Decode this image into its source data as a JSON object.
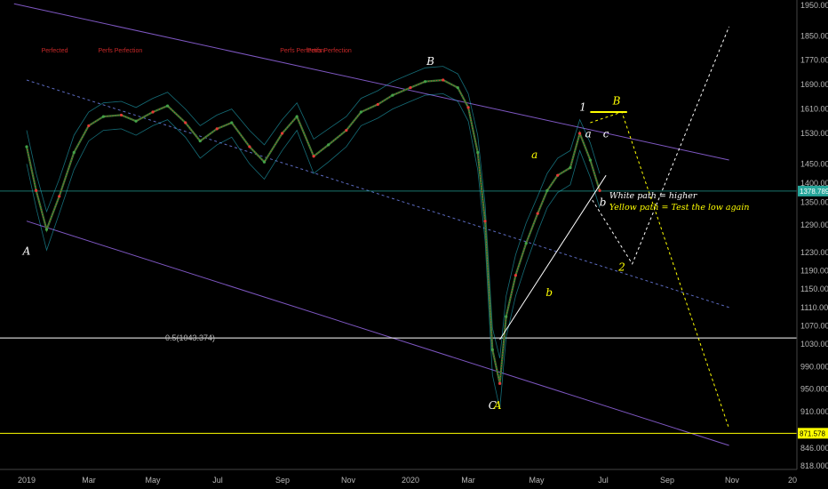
{
  "chart_data": {
    "type": "line",
    "title": "",
    "y_axis": {
      "ticks": [
        818,
        846,
        871.578,
        910,
        950,
        990,
        1030,
        1070,
        1110,
        1150,
        1190,
        1230,
        1290,
        1350,
        1378.789,
        1400,
        1450,
        1530,
        1610,
        1690,
        1770,
        1850,
        1950
      ],
      "labels": [
        "818.000",
        "846.000",
        "871.578",
        "910.000",
        "950.000",
        "990.000",
        "1030.000",
        "1070.000",
        "1110.000",
        "1150.000",
        "1190.000",
        "1230.000",
        "1290.000",
        "1350.000",
        "1378.789",
        "1400.000",
        "1450.000",
        "1530.000",
        "1610.000",
        "1690.000",
        "1770.000",
        "1850.000",
        "1950.000"
      ]
    },
    "x_axis": {
      "labels": [
        "2019",
        "Mar",
        "May",
        "Jul",
        "Sep",
        "Nov",
        "2020",
        "Mar",
        "May",
        "Jul",
        "Sep",
        "Nov",
        "20"
      ]
    },
    "price_series": {
      "name": "",
      "x": [
        "2019-01-01",
        "2019-01-10",
        "2019-01-20",
        "2019-02-01",
        "2019-02-15",
        "2019-03-01",
        "2019-03-15",
        "2019-04-01",
        "2019-04-15",
        "2019-05-01",
        "2019-05-15",
        "2019-06-01",
        "2019-06-15",
        "2019-07-01",
        "2019-07-15",
        "2019-08-01",
        "2019-08-15",
        "2019-09-01",
        "2019-09-15",
        "2019-10-01",
        "2019-10-15",
        "2019-11-01",
        "2019-11-15",
        "2019-12-01",
        "2019-12-15",
        "2020-01-01",
        "2020-01-15",
        "2020-02-01",
        "2020-02-15",
        "2020-02-25",
        "2020-03-05",
        "2020-03-12",
        "2020-03-19",
        "2020-03-26",
        "2020-04-01",
        "2020-04-10",
        "2020-04-20",
        "2020-05-01",
        "2020-05-10",
        "2020-05-20",
        "2020-06-01",
        "2020-06-10",
        "2020-06-20",
        "2020-06-29"
      ],
      "y": [
        1495,
        1380,
        1280,
        1365,
        1480,
        1555,
        1585,
        1590,
        1570,
        1600,
        1620,
        1565,
        1510,
        1545,
        1565,
        1495,
        1455,
        1530,
        1585,
        1470,
        1500,
        1540,
        1600,
        1625,
        1655,
        1680,
        1700,
        1705,
        1680,
        1615,
        1480,
        1300,
        1020,
        960,
        1090,
        1180,
        1250,
        1320,
        1380,
        1420,
        1440,
        1530,
        1460,
        1380
      ]
    },
    "channel_upper": {
      "x": [
        "2018-12-20",
        "2020-10-30"
      ],
      "y": [
        1955,
        1460
      ]
    },
    "channel_lower": {
      "x": [
        "2019-01-01",
        "2020-10-30"
      ],
      "y": [
        1300,
        850
      ]
    },
    "channel_mid": {
      "x": [
        "2019-01-01",
        "2020-10-30"
      ],
      "y": [
        1705,
        1110
      ]
    },
    "horizontal_levels": [
      {
        "value": 1043.374,
        "label": "0.5(1043.374)",
        "color": "#ffffff"
      },
      {
        "value": 871.578,
        "color": "#ffff00"
      },
      {
        "value": 1378.789,
        "color": "#26a69a"
      }
    ],
    "white_path": {
      "x": [
        "2020-06-22",
        "2020-07-30",
        "2020-10-30"
      ],
      "y": [
        1355,
        1205,
        1880
      ]
    },
    "yellow_path": {
      "x": [
        "2020-06-20",
        "2020-07-20",
        "2020-10-30"
      ],
      "y": [
        1565,
        1600,
        880
      ]
    },
    "wave_labels": [
      {
        "text": "A",
        "x": "2019-01-01",
        "y": 1225,
        "color": "#ffffff"
      },
      {
        "text": "B",
        "x": "2020-01-20",
        "y": 1755,
        "color": "#ffffff"
      },
      {
        "text": "C",
        "x": "2020-03-19",
        "y": 915,
        "color": "#ffffff"
      },
      {
        "text": "A",
        "x": "2020-03-24",
        "y": 915,
        "color": "#ffff00"
      },
      {
        "text": "a",
        "x": "2020-04-28",
        "y": 1465,
        "color": "#ffff00"
      },
      {
        "text": "b",
        "x": "2020-05-12",
        "y": 1135,
        "color": "#ffff00"
      },
      {
        "text": "1",
        "x": "2020-06-13",
        "y": 1605,
        "color": "#ffffff"
      },
      {
        "text": "B",
        "x": "2020-07-15",
        "y": 1625,
        "color": "#ffff00"
      },
      {
        "text": "a",
        "x": "2020-06-18",
        "y": 1520,
        "color": "#ffffff"
      },
      {
        "text": "c",
        "x": "2020-07-05",
        "y": 1520,
        "color": "#ffffff"
      },
      {
        "text": "b",
        "x": "2020-07-02",
        "y": 1340,
        "color": "#ffffff"
      },
      {
        "text": "2",
        "x": "2020-07-20",
        "y": 1190,
        "color": "#ffff00"
      }
    ],
    "annotations": [
      {
        "text": "White path = higher",
        "x": "2020-07-25",
        "y": 1360,
        "color": "#ffffff"
      },
      {
        "text": "Yellow path = Test the low again",
        "x": "2020-07-25",
        "y": 1330,
        "color": "#ffff00"
      }
    ],
    "indicator_labels": [
      {
        "text": "Perfected",
        "x": "2019-01-15",
        "y": 1795
      },
      {
        "text": "Perfs Perfection",
        "x": "2019-03-10",
        "y": 1795
      },
      {
        "text": "Perfs Perfection",
        "x": "2019-08-30",
        "y": 1795
      },
      {
        "text": "Perfs Perfection",
        "x": "2019-09-25",
        "y": 1795
      }
    ],
    "price_label": "871.578",
    "current_price": "1378.789",
    "grid": false,
    "legend": "none"
  }
}
